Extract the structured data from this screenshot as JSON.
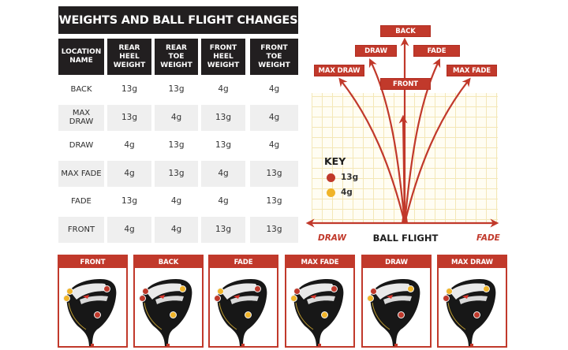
{
  "table": {
    "title": "WEIGHTS AND BALL FLIGHT CHANGES",
    "headers": [
      "LOCATION\nNAME",
      "REAR\nHEEL\nWEIGHT",
      "REAR\nTOE\nWEIGHT",
      "FRONT\nHEEL\nWEIGHT",
      "FRONT\nTOE\nWEIGHT"
    ],
    "rows": [
      {
        "name": "BACK",
        "rear_heel": "13g",
        "rear_toe": "13g",
        "front_heel": "4g",
        "front_toe": "4g"
      },
      {
        "name": "MAX\nDRAW",
        "rear_heel": "13g",
        "rear_toe": "4g",
        "front_heel": "13g",
        "front_toe": "4g"
      },
      {
        "name": "DRAW",
        "rear_heel": "4g",
        "rear_toe": "13g",
        "front_heel": "13g",
        "front_toe": "4g"
      },
      {
        "name": "MAX FADE",
        "rear_heel": "4g",
        "rear_toe": "13g",
        "front_heel": "4g",
        "front_toe": "13g"
      },
      {
        "name": "FADE",
        "rear_heel": "13g",
        "rear_toe": "4g",
        "front_heel": "4g",
        "front_toe": "13g"
      },
      {
        "name": "FRONT",
        "rear_heel": "4g",
        "rear_toe": "4g",
        "front_heel": "13g",
        "front_toe": "13g"
      }
    ]
  },
  "flight": {
    "labels": {
      "back": "BACK",
      "draw": "DRAW",
      "fade": "FADE",
      "max_draw": "MAX DRAW",
      "max_fade": "MAX FADE",
      "front": "FRONT"
    },
    "axis_left": "DRAW",
    "axis_right": "FADE",
    "axis_title": "BALL FLIGHT",
    "key": {
      "title": "KEY",
      "items": [
        {
          "label": "13g",
          "color": "#c0392b"
        },
        {
          "label": "4g",
          "color": "#f0b429"
        }
      ]
    }
  },
  "cards": [
    {
      "title": "FRONT",
      "rear_toe": "4g",
      "rear_heel": "4g",
      "front_toe": "13g",
      "front_heel": "13g"
    },
    {
      "title": "BACK",
      "rear_toe": "13g",
      "rear_heel": "13g",
      "front_toe": "4g",
      "front_heel": "4g"
    },
    {
      "title": "FADE",
      "rear_toe": "4g",
      "rear_heel": "13g",
      "front_toe": "13g",
      "front_heel": "4g"
    },
    {
      "title": "MAX FADE",
      "rear_toe": "13g",
      "rear_heel": "4g",
      "front_toe": "13g",
      "front_heel": "4g"
    },
    {
      "title": "DRAW",
      "rear_toe": "13g",
      "rear_heel": "4g",
      "front_toe": "4g",
      "front_heel": "13g"
    },
    {
      "title": "MAX DRAW",
      "rear_toe": "4g",
      "rear_heel": "13g",
      "front_toe": "4g",
      "front_heel": "13g"
    }
  ],
  "colors": {
    "accent_red": "#c1392b",
    "header_dark": "#221f20",
    "weight_13g": "#c0392b",
    "weight_4g": "#f0b429",
    "grid_line": "#f4e7b7"
  }
}
